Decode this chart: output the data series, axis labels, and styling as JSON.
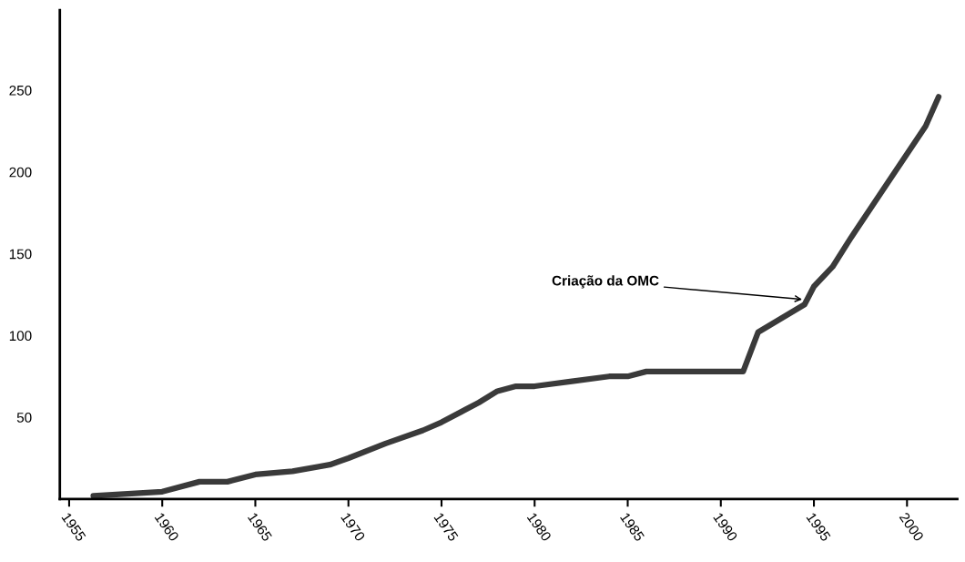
{
  "chart_data": {
    "type": "line",
    "x": [
      1956.3,
      1960,
      1962,
      1963.5,
      1965,
      1967,
      1969,
      1970,
      1972,
      1974,
      1975,
      1977,
      1978,
      1979,
      1980,
      1982,
      1984,
      1985,
      1986,
      1990,
      1991.2,
      1992,
      1994.5,
      1995,
      1996,
      1997,
      1999,
      2000,
      2001,
      2001.7
    ],
    "series": [
      {
        "color": "#3a3a3a",
        "values": [
          2,
          4.5,
          10.6,
          10.6,
          15,
          17,
          21,
          25,
          34,
          42,
          47,
          59,
          66,
          69,
          69,
          72,
          75,
          75,
          78,
          78,
          78,
          102,
          119,
          130,
          142,
          160,
          194,
          211,
          228,
          246
        ]
      }
    ],
    "xlim": [
      1954.5,
      2002.7
    ],
    "ylim": [
      0,
      299
    ],
    "xticks": [
      1955,
      1960,
      1965,
      1970,
      1975,
      1980,
      1985,
      1990,
      1995,
      2000
    ],
    "yticks": [
      50,
      100,
      150,
      200,
      250
    ],
    "annotations": [
      {
        "text": "Criação da OMC",
        "x": 1994.5,
        "y": 122
      }
    ],
    "marker": "none",
    "line_style": "solid"
  }
}
